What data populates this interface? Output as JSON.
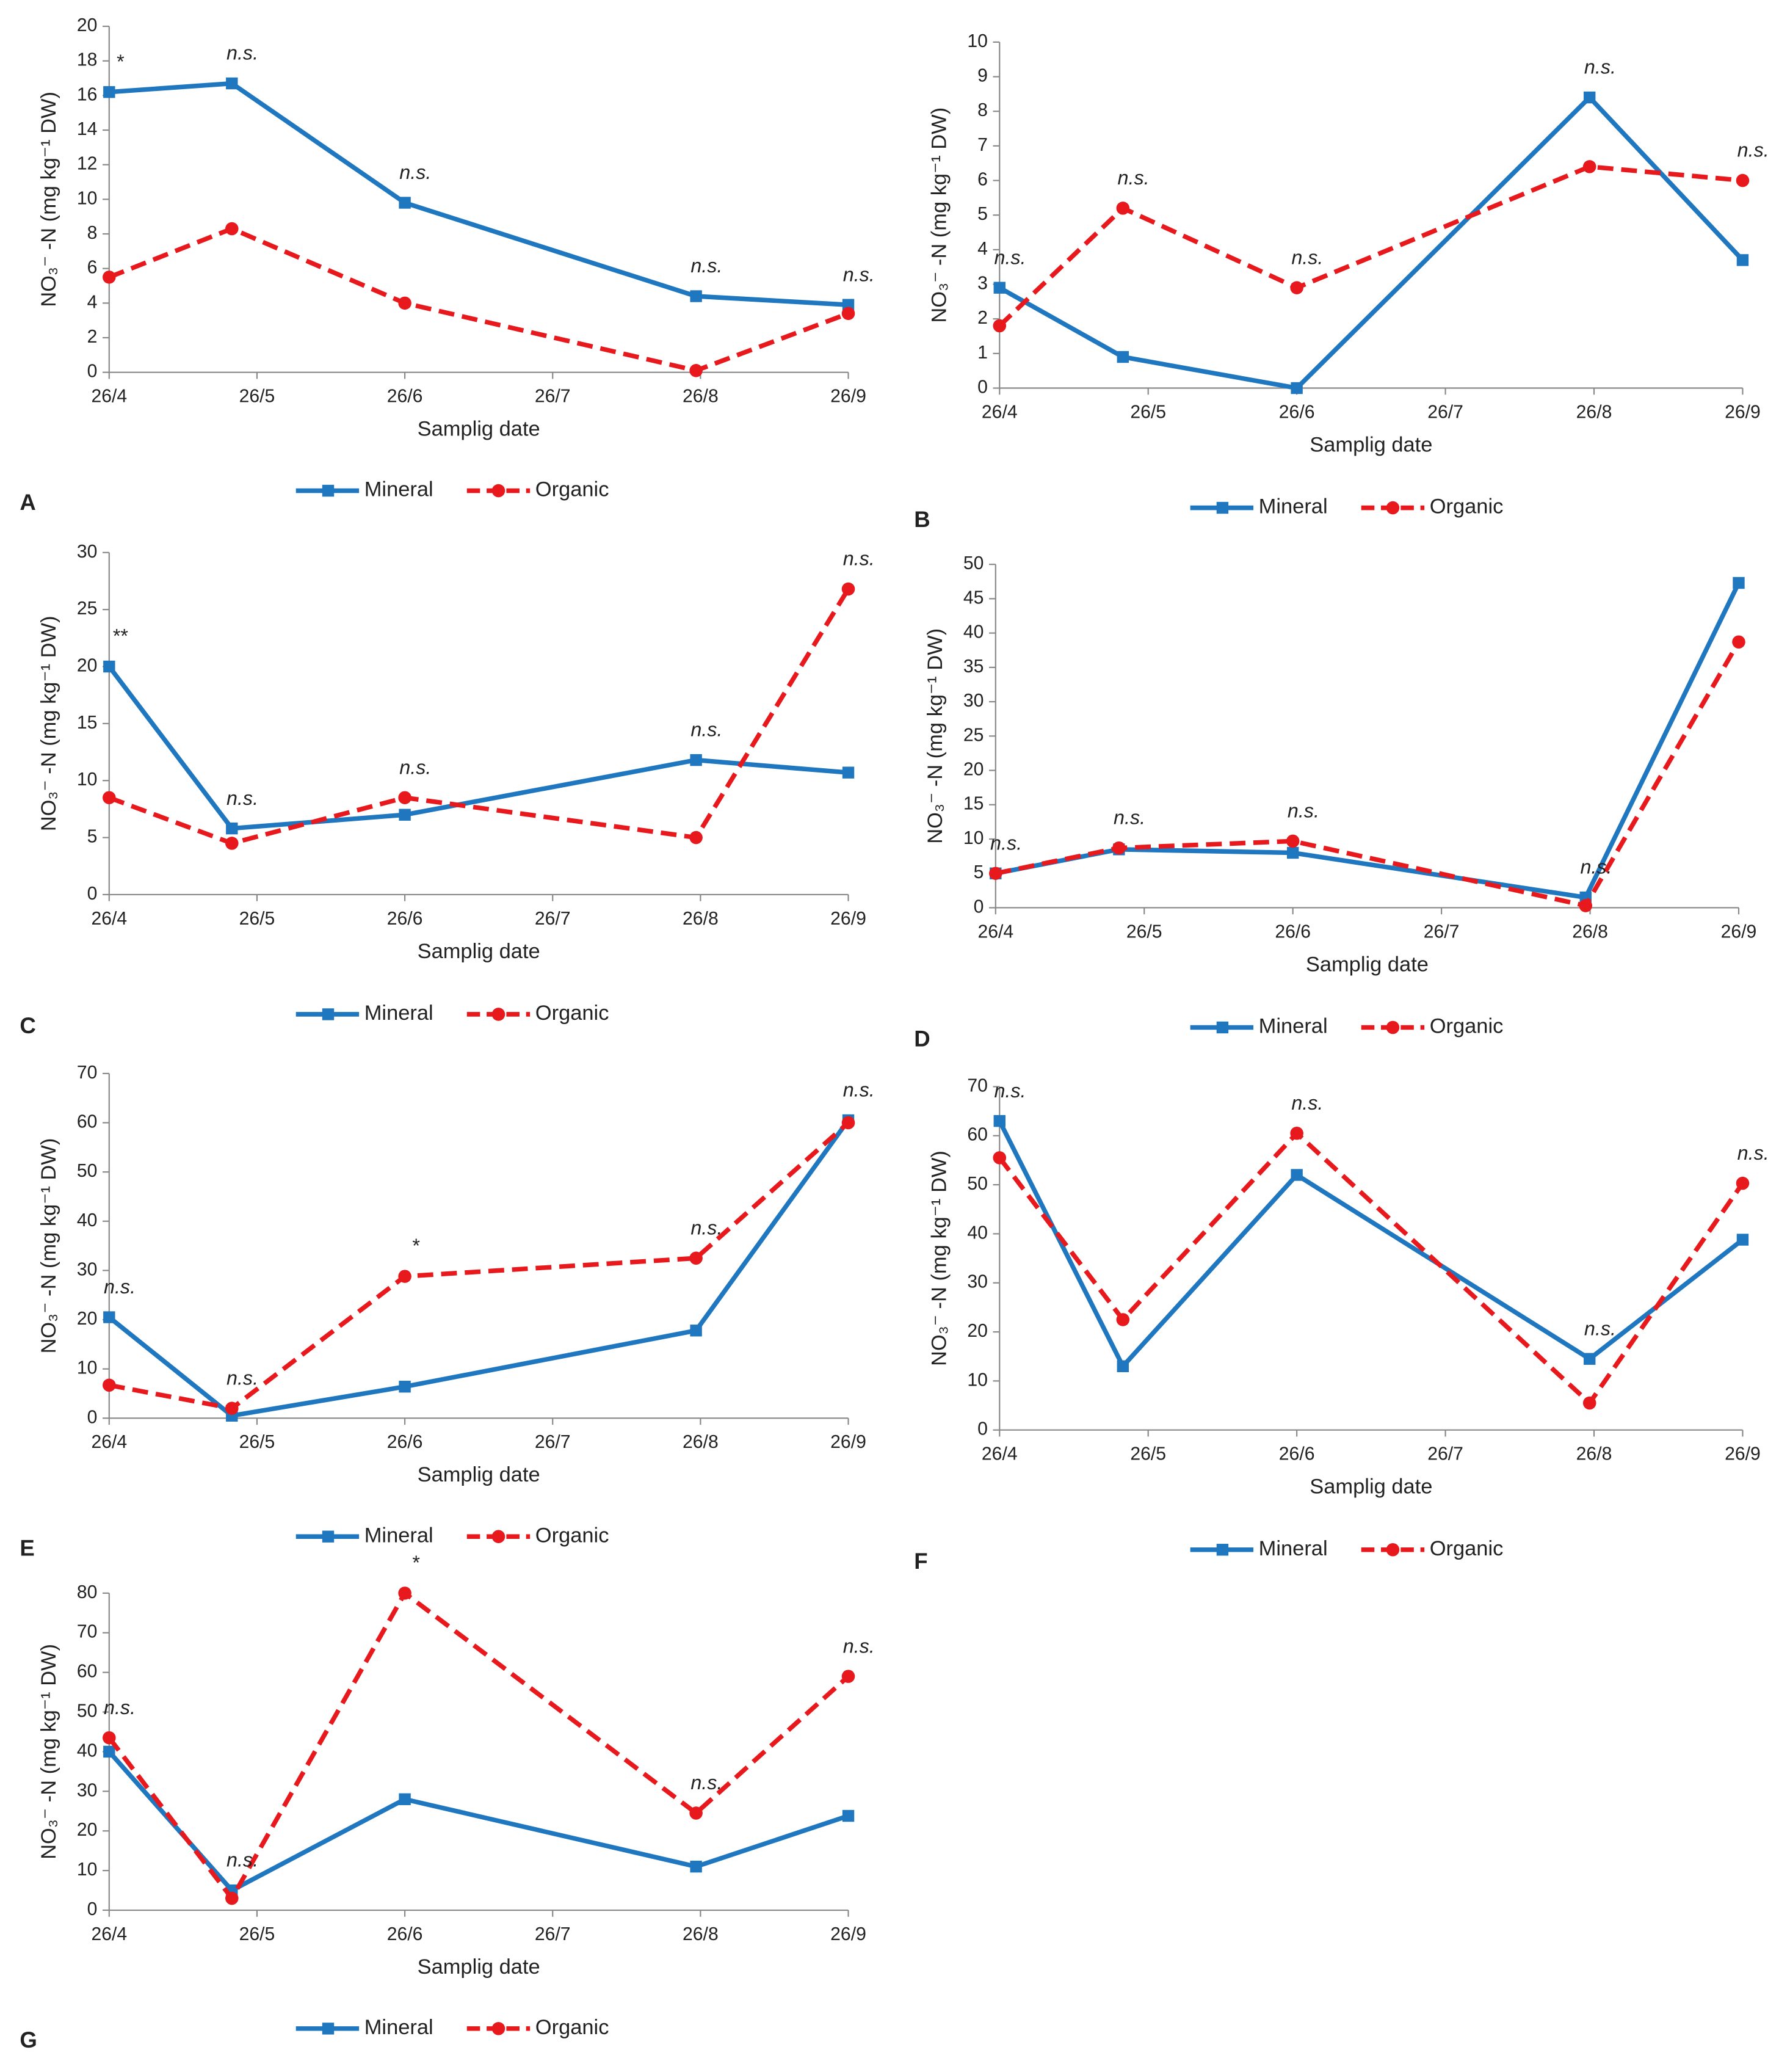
{
  "chart_data": [
    {
      "type": "line",
      "panel": "A",
      "x_label": "Samplig date",
      "y_label": "NO₃⁻ -N (mg kg⁻¹ DW)",
      "xlim": [
        0,
        5
      ],
      "xticks": [
        {
          "value": 0,
          "label": "26/4"
        },
        {
          "value": 1,
          "label": "26/5"
        },
        {
          "value": 2,
          "label": "26/6"
        },
        {
          "value": 3,
          "label": "26/7"
        },
        {
          "value": 4,
          "label": "26/8"
        },
        {
          "value": 5,
          "label": "26/9"
        }
      ],
      "ylim": [
        0,
        20
      ],
      "yticks": [
        0,
        2,
        4,
        6,
        8,
        10,
        12,
        14,
        16,
        18,
        20
      ],
      "x": [
        0,
        0.83,
        2,
        3.97,
        5
      ],
      "annotations": [
        "*",
        "n.s.",
        "n.s.",
        "n.s.",
        "n.s."
      ],
      "series": [
        {
          "name": "Mineral",
          "color": "#1f77c0",
          "values": [
            16.2,
            16.7,
            9.8,
            4.4,
            3.9
          ]
        },
        {
          "name": "Organic",
          "color": "#e8191d",
          "values": [
            5.5,
            8.3,
            4,
            0.1,
            3.4
          ]
        }
      ]
    },
    {
      "type": "line",
      "panel": "B",
      "x_label": "Samplig date",
      "y_label": "NO₃⁻ -N (mg kg⁻¹ DW)",
      "xlim": [
        0,
        5
      ],
      "xticks": [
        {
          "value": 0,
          "label": "26/4"
        },
        {
          "value": 1,
          "label": "26/5"
        },
        {
          "value": 2,
          "label": "26/6"
        },
        {
          "value": 3,
          "label": "26/7"
        },
        {
          "value": 4,
          "label": "26/8"
        },
        {
          "value": 5,
          "label": "26/9"
        }
      ],
      "ylim": [
        0,
        10
      ],
      "yticks": [
        0,
        1,
        2,
        3,
        4,
        5,
        6,
        7,
        8,
        9,
        10
      ],
      "x": [
        0,
        0.83,
        2,
        3.97,
        5
      ],
      "annotations": [
        "n.s.",
        "n.s.",
        "n.s.",
        "n.s.",
        "n.s."
      ],
      "series": [
        {
          "name": "Mineral",
          "color": "#1f77c0",
          "values": [
            2.9,
            0.9,
            0,
            8.4,
            3.7
          ]
        },
        {
          "name": "Organic",
          "color": "#e8191d",
          "values": [
            1.8,
            5.2,
            2.9,
            6.4,
            6.0
          ]
        }
      ]
    },
    {
      "type": "line",
      "panel": "C",
      "x_label": "Samplig date",
      "y_label": "NO₃⁻ -N (mg kg⁻¹ DW)",
      "xlim": [
        0,
        5
      ],
      "xticks": [
        {
          "value": 0,
          "label": "26/4"
        },
        {
          "value": 1,
          "label": "26/5"
        },
        {
          "value": 2,
          "label": "26/6"
        },
        {
          "value": 3,
          "label": "26/7"
        },
        {
          "value": 4,
          "label": "26/8"
        },
        {
          "value": 5,
          "label": "26/9"
        }
      ],
      "ylim": [
        0,
        30
      ],
      "yticks": [
        0,
        5,
        10,
        15,
        20,
        25,
        30
      ],
      "x": [
        0,
        0.83,
        2,
        3.97,
        5
      ],
      "annotations": [
        "**",
        "n.s.",
        "n.s.",
        "n.s.",
        "n.s."
      ],
      "series": [
        {
          "name": "Mineral",
          "color": "#1f77c0",
          "values": [
            20,
            5.8,
            7,
            11.8,
            10.7
          ]
        },
        {
          "name": "Organic",
          "color": "#e8191d",
          "values": [
            8.5,
            4.5,
            8.5,
            5,
            26.8
          ]
        }
      ]
    },
    {
      "type": "line",
      "panel": "D",
      "x_label": "Samplig date",
      "y_label": "NO₃⁻ -N (mg kg⁻¹ DW)",
      "xlim": [
        0,
        5
      ],
      "xticks": [
        {
          "value": 0,
          "label": "26/4"
        },
        {
          "value": 1,
          "label": "26/5"
        },
        {
          "value": 2,
          "label": "26/6"
        },
        {
          "value": 3,
          "label": "26/7"
        },
        {
          "value": 4,
          "label": "26/8"
        },
        {
          "value": 5,
          "label": "26/9"
        }
      ],
      "ylim": [
        0,
        50
      ],
      "yticks": [
        0,
        5,
        10,
        15,
        20,
        25,
        30,
        35,
        40,
        45,
        50
      ],
      "x": [
        0,
        0.83,
        2,
        3.97,
        5
      ],
      "annotations": [
        "n.s.",
        "n.s.",
        "n.s.",
        "n.s.",
        null
      ],
      "series": [
        {
          "name": "Mineral",
          "color": "#1f77c0",
          "values": [
            5,
            8.5,
            8,
            1.5,
            47.3
          ]
        },
        {
          "name": "Organic",
          "color": "#e8191d",
          "values": [
            5,
            8.7,
            9.7,
            0.3,
            38.7
          ]
        }
      ]
    },
    {
      "type": "line",
      "panel": "E",
      "x_label": "Samplig date",
      "y_label": "NO₃⁻ -N (mg kg⁻¹ DW)",
      "xlim": [
        0,
        5
      ],
      "xticks": [
        {
          "value": 0,
          "label": "26/4"
        },
        {
          "value": 1,
          "label": "26/5"
        },
        {
          "value": 2,
          "label": "26/6"
        },
        {
          "value": 3,
          "label": "26/7"
        },
        {
          "value": 4,
          "label": "26/8"
        },
        {
          "value": 5,
          "label": "26/9"
        }
      ],
      "ylim": [
        0,
        70
      ],
      "yticks": [
        0,
        10,
        20,
        30,
        40,
        50,
        60,
        70
      ],
      "x": [
        0,
        0.83,
        2,
        3.97,
        5
      ],
      "annotations": [
        "n.s.",
        "n.s.",
        "*",
        "n.s.",
        "n.s."
      ],
      "series": [
        {
          "name": "Mineral",
          "color": "#1f77c0",
          "values": [
            20.5,
            0.5,
            6.4,
            17.8,
            60.5
          ]
        },
        {
          "name": "Organic",
          "color": "#e8191d",
          "values": [
            6.7,
            2,
            28.8,
            32.5,
            60
          ]
        }
      ]
    },
    {
      "type": "line",
      "panel": "F",
      "x_label": "Samplig date",
      "y_label": "NO₃⁻ -N (mg kg⁻¹ DW)",
      "xlim": [
        0,
        5
      ],
      "xticks": [
        {
          "value": 0,
          "label": "26/4"
        },
        {
          "value": 1,
          "label": "26/5"
        },
        {
          "value": 2,
          "label": "26/6"
        },
        {
          "value": 3,
          "label": "26/7"
        },
        {
          "value": 4,
          "label": "26/8"
        },
        {
          "value": 5,
          "label": "26/9"
        }
      ],
      "ylim": [
        0,
        70
      ],
      "yticks": [
        0,
        10,
        20,
        30,
        40,
        50,
        60,
        70
      ],
      "x": [
        0,
        0.83,
        2,
        3.97,
        5
      ],
      "annotations": [
        "n.s.",
        null,
        "n.s.",
        "n.s.",
        "n.s."
      ],
      "series": [
        {
          "name": "Mineral",
          "color": "#1f77c0",
          "values": [
            63,
            13,
            52,
            14.5,
            38.8
          ]
        },
        {
          "name": "Organic",
          "color": "#e8191d",
          "values": [
            55.5,
            22.5,
            60.5,
            5.5,
            50.3
          ]
        }
      ]
    },
    {
      "type": "line",
      "panel": "G",
      "x_label": "Samplig date",
      "y_label": "NO₃⁻ -N (mg kg⁻¹ DW)",
      "xlim": [
        0,
        5
      ],
      "xticks": [
        {
          "value": 0,
          "label": "26/4"
        },
        {
          "value": 1,
          "label": "26/5"
        },
        {
          "value": 2,
          "label": "26/6"
        },
        {
          "value": 3,
          "label": "26/7"
        },
        {
          "value": 4,
          "label": "26/8"
        },
        {
          "value": 5,
          "label": "26/9"
        }
      ],
      "ylim": [
        0,
        80
      ],
      "yticks": [
        0,
        10,
        20,
        30,
        40,
        50,
        60,
        70,
        80
      ],
      "x": [
        0,
        0.83,
        2,
        3.97,
        5
      ],
      "annotations": [
        "n.s.",
        "n.s.",
        "*",
        "n.s.",
        "n.s."
      ],
      "series": [
        {
          "name": "Mineral",
          "color": "#1f77c0",
          "values": [
            40,
            5,
            28,
            11,
            23.8
          ]
        },
        {
          "name": "Organic",
          "color": "#e8191d",
          "values": [
            43.5,
            3,
            80,
            24.5,
            59
          ]
        }
      ]
    }
  ]
}
